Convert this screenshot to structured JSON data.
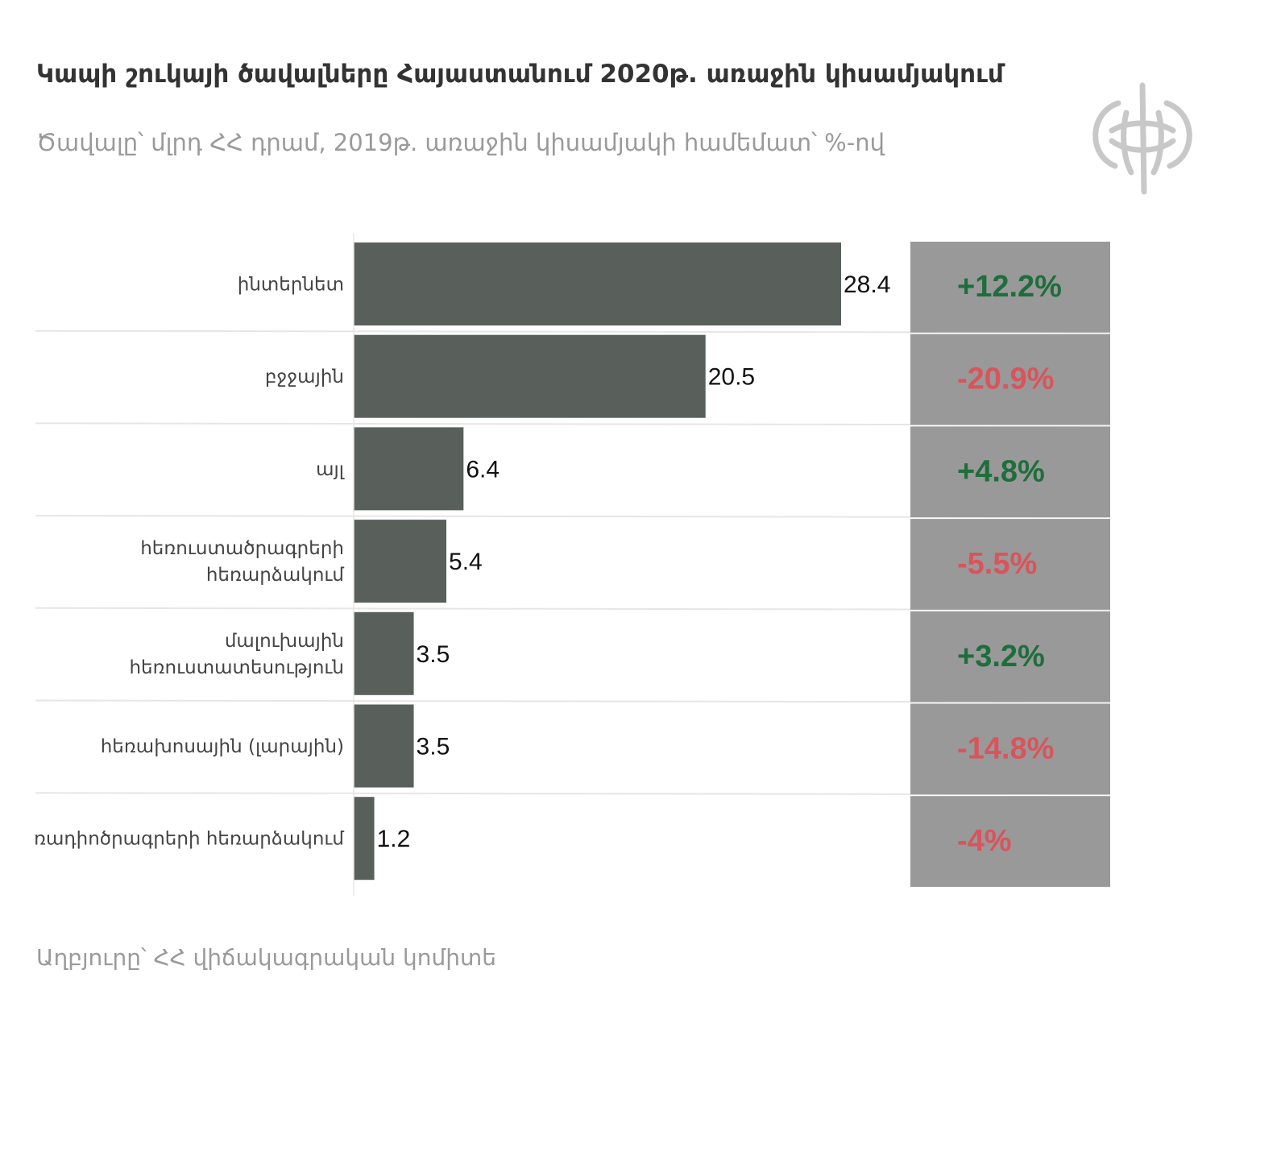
{
  "title": "Կապի շուկայի ծավալները Հայաստանում 2020թ. առաջին կիսամյակում",
  "subtitle": "Ծավալը՝ մլրդ ՀՀ դրամ, 2019թ. առաջին կիսամյակի համեմատ՝ %-ով",
  "source": "Աղբյուրը՝ ՀՀ վիճակագրական կոմիտե",
  "logo": "mask-logo-icon",
  "colors": {
    "bar": "#59605c",
    "change_bg": "#999999",
    "positive": "#1e6e3c",
    "negative": "#d9545b",
    "gridline": "#e6e6e6"
  },
  "chart_data": {
    "type": "bar",
    "orientation": "horizontal",
    "categories": [
      [
        "ինտերնետ"
      ],
      [
        "բջջային"
      ],
      [
        "այլ"
      ],
      [
        "հեռուստածրագրերի",
        "հեռարձակում"
      ],
      [
        "մալուխային",
        "հեռուստատեսություն"
      ],
      [
        "հեռախոսային (լարային)"
      ],
      [
        "ռադիոծրագրերի հեռարձակում"
      ]
    ],
    "values": [
      28.4,
      20.5,
      6.4,
      5.4,
      3.5,
      3.5,
      1.2
    ],
    "value_labels": [
      "28.4",
      "20.5",
      "6.4",
      "5.4",
      "3.5",
      "3.5",
      "1.2"
    ],
    "changes": [
      "+12.2%",
      "-20.9%",
      "+4.8%",
      "-5.5%",
      "+3.2%",
      "-14.8%",
      "-4%"
    ],
    "change_signs": [
      "positive",
      "negative",
      "positive",
      "negative",
      "positive",
      "negative",
      "negative"
    ],
    "xlim": [
      0,
      30
    ],
    "grid": true,
    "legend": "none"
  }
}
